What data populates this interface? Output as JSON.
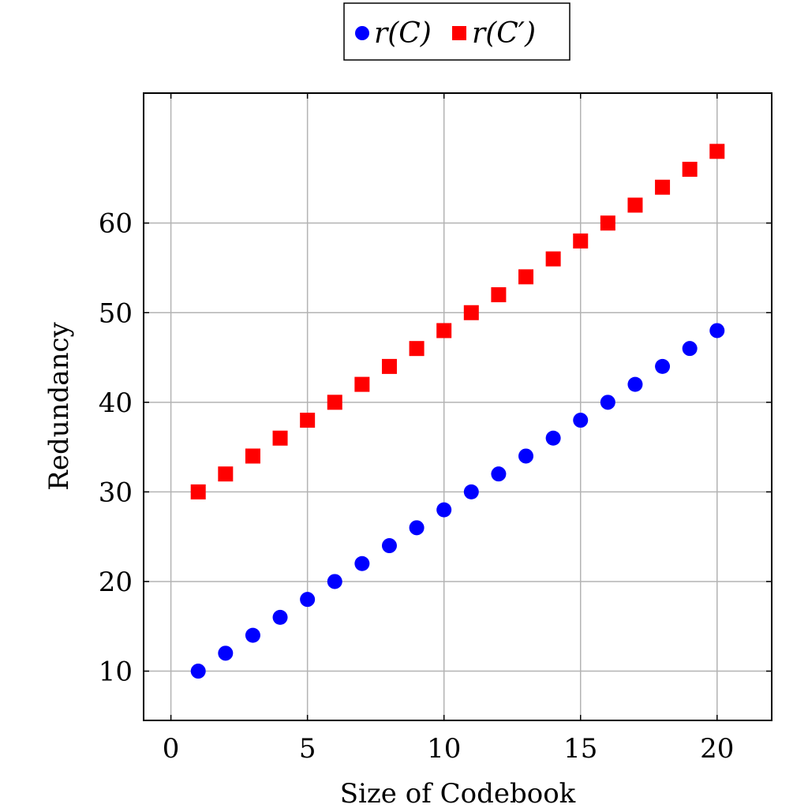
{
  "chart_data": {
    "type": "scatter",
    "title": "",
    "xlabel": "Size of Codebook",
    "ylabel": "Redundancy",
    "xlim": [
      -1,
      22
    ],
    "ylim": [
      4.5,
      74.5
    ],
    "xticks": [
      0,
      5,
      10,
      15,
      20
    ],
    "yticks": [
      10,
      20,
      30,
      40,
      50,
      60
    ],
    "grid": true,
    "legend_position": "top-center",
    "x": [
      1,
      2,
      3,
      4,
      5,
      6,
      7,
      8,
      9,
      10,
      11,
      12,
      13,
      14,
      15,
      16,
      17,
      18,
      19,
      20
    ],
    "series": [
      {
        "name": "r(C)",
        "marker": "circle",
        "color": "#0000ff",
        "values": [
          10,
          12,
          14,
          16,
          18,
          20,
          22,
          24,
          26,
          28,
          30,
          32,
          34,
          36,
          38,
          40,
          42,
          44,
          46,
          48
        ]
      },
      {
        "name": "r(C′)",
        "marker": "square",
        "color": "#ff0000",
        "values": [
          30,
          32,
          34,
          36,
          38,
          40,
          42,
          44,
          46,
          48,
          50,
          52,
          54,
          56,
          58,
          60,
          62,
          64,
          66,
          68
        ]
      }
    ]
  }
}
